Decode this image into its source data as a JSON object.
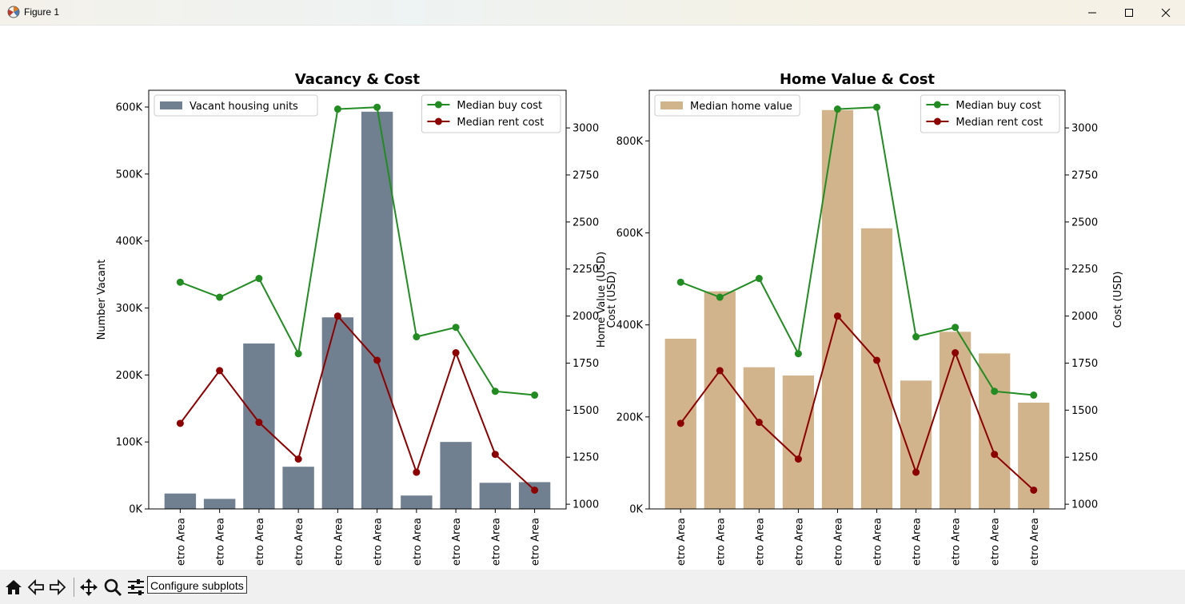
{
  "window": {
    "title": "Figure 1"
  },
  "toolbar": {
    "tooltip": "Configure subplots",
    "buttons": [
      "home-icon",
      "back-icon",
      "forward-icon",
      "pan-icon",
      "zoom-icon",
      "configure-icon"
    ]
  },
  "colors": {
    "vacant": "#708090",
    "home": "#d2b48c",
    "buy": "#228b22",
    "rent": "#8b0000"
  },
  "chart_data": [
    {
      "type": "bar",
      "title": "Vacancy & Cost",
      "categories": [
        "etro Area",
        "etro Area",
        "etro Area",
        "etro Area",
        "etro Area",
        "etro Area",
        "etro Area",
        "etro Area",
        "etro Area",
        "etro Area"
      ],
      "ylabel": "Number Vacant",
      "ylim": [
        0,
        625000
      ],
      "yticks": [
        "0K",
        "100K",
        "200K",
        "300K",
        "400K",
        "500K",
        "600K"
      ],
      "series": [
        {
          "name": "Vacant housing units",
          "type": "bar",
          "values": [
            23000,
            15000,
            247000,
            63000,
            286000,
            593000,
            20000,
            100000,
            39000,
            40000
          ]
        }
      ],
      "secondary": {
        "ylabel": "Cost (USD)",
        "overlay_label": "Home Value (USD)",
        "ylim": [
          975,
          3200
        ],
        "yticks": [
          "1000",
          "1250",
          "1500",
          "1750",
          "2000",
          "2250",
          "2500",
          "2750",
          "3000"
        ],
        "series": [
          {
            "name": "Median buy cost",
            "type": "line",
            "values": [
              2180,
              2100,
              2200,
              1800,
              3100,
              3110,
              1890,
              1940,
              1600,
              1580
            ]
          },
          {
            "name": "Median rent cost",
            "type": "line",
            "values": [
              1430,
              1710,
              1435,
              1240,
              2000,
              1765,
              1170,
              1805,
              1265,
              1075
            ]
          }
        ]
      },
      "legend": [
        "top-left",
        "top-right"
      ]
    },
    {
      "type": "bar",
      "title": "Home Value & Cost",
      "categories": [
        "etro Area",
        "etro Area",
        "etro Area",
        "etro Area",
        "etro Area",
        "etro Area",
        "etro Area",
        "etro Area",
        "etro Area",
        "etro Area"
      ],
      "ylabel": "",
      "ylim": [
        0,
        910000
      ],
      "yticks": [
        "0K",
        "200K",
        "400K",
        "600K",
        "800K"
      ],
      "series": [
        {
          "name": "Median home value",
          "type": "bar",
          "values": [
            370000,
            473000,
            308000,
            290000,
            867000,
            610000,
            279000,
            385000,
            338000,
            231000
          ]
        }
      ],
      "secondary": {
        "ylabel": "Cost (USD)",
        "ylim": [
          975,
          3200
        ],
        "yticks": [
          "1000",
          "1250",
          "1500",
          "1750",
          "2000",
          "2250",
          "2500",
          "2750",
          "3000"
        ],
        "series": [
          {
            "name": "Median buy cost",
            "type": "line",
            "values": [
              2180,
              2100,
              2200,
              1800,
              3100,
              3110,
              1890,
              1940,
              1600,
              1580
            ]
          },
          {
            "name": "Median rent cost",
            "type": "line",
            "values": [
              1430,
              1710,
              1435,
              1240,
              2000,
              1765,
              1170,
              1805,
              1265,
              1075
            ]
          }
        ]
      },
      "legend": [
        "top-left",
        "top-right"
      ]
    }
  ]
}
